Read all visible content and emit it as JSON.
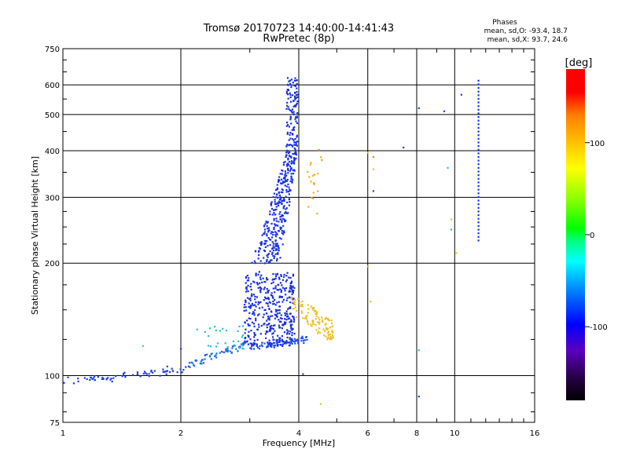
{
  "chart_data": {
    "type": "scatter",
    "title": "Tromsø 20170723 14:40:00-14:41:43",
    "subtitle": "RwPretec (8p)",
    "xlabel": "Frequency [MHz]",
    "ylabel": "Stationary phase Virtual Height [km]",
    "x_scale": "log",
    "y_scale": "log",
    "xlim": [
      1,
      16
    ],
    "ylim": [
      75,
      750
    ],
    "x_ticks": [
      1,
      2,
      4,
      6,
      8,
      10,
      16
    ],
    "x_tick_labels": [
      "1",
      "2",
      "4",
      "6",
      "8",
      "10",
      "16"
    ],
    "y_ticks": [
      75,
      100,
      200,
      300,
      400,
      500,
      600,
      750
    ],
    "y_tick_labels": [
      "75",
      "100",
      "200",
      "300",
      "400",
      "500",
      "600",
      "750"
    ],
    "grid": true,
    "phases": {
      "heading": "Phases",
      "o_line": "mean, sd,O: -93.4, 18.7",
      "x_line": "mean, sd,X:  93.7, 24.6"
    },
    "colorbar": {
      "label": "[deg]",
      "min": -180,
      "max": 180,
      "ticks": [
        100,
        0,
        -100
      ],
      "tick_labels": [
        "100",
        "0",
        "-100"
      ],
      "stops": [
        "#000000",
        "#2a0048",
        "#5a00c0",
        "#0000ff",
        "#0080ff",
        "#00ffff",
        "#00ff80",
        "#00ff00",
        "#80ff00",
        "#ffff00",
        "#ffc000",
        "#ff8000",
        "#ff0000",
        "#ff0000"
      ]
    },
    "clusters": [
      {
        "name": "low-trace",
        "color": "#1e40e6",
        "n": 70,
        "fmin": 1.0,
        "fmax": 2.1,
        "hmin": 94,
        "hmax": 106
      },
      {
        "name": "trace-rise",
        "color": "#1e6ee6",
        "n": 60,
        "fmin": 2.1,
        "fmax": 2.9,
        "hmin": 106,
        "hmax": 122
      },
      {
        "name": "o-base",
        "color": "#1e50f0",
        "n": 70,
        "fmin": 3.0,
        "fmax": 4.2,
        "hmin": 118,
        "hmax": 126
      },
      {
        "name": "o-blob",
        "color": "#1a30e0",
        "n": 420,
        "fmin": 2.9,
        "fmax": 3.9,
        "hmin": 120,
        "hmax": 190
      },
      {
        "name": "o-column",
        "color": "#1a32e6",
        "n": 330,
        "fmin": 3.2,
        "fmax": 3.85,
        "hmin": 200,
        "hmax": 400
      },
      {
        "name": "o-top",
        "color": "#1830e0",
        "n": 110,
        "fmin": 3.65,
        "fmax": 4.0,
        "hmin": 400,
        "hmax": 630
      },
      {
        "name": "cyan-near-2.5",
        "color": "#20c0e0",
        "n": 25,
        "fmin": 2.3,
        "fmax": 2.9,
        "hmin": 118,
        "hmax": 136
      },
      {
        "name": "x-blob",
        "color": "#f0c020",
        "n": 110,
        "fmin": 3.8,
        "fmax": 4.9,
        "hmin": 122,
        "hmax": 168
      },
      {
        "name": "x-high",
        "color": "#f0b020",
        "n": 20,
        "fmin": 4.2,
        "fmax": 4.6,
        "hmin": 270,
        "hmax": 390
      },
      {
        "name": "ladder-11.5",
        "color": "#1a32e6",
        "n": 45,
        "fmin": 11.4,
        "fmax": 11.6,
        "hmin": 230,
        "hmax": 630
      }
    ],
    "points": [
      {
        "f": 1.6,
        "h": 120,
        "c": "#40e060"
      },
      {
        "f": 1.03,
        "h": 99,
        "c": "#1e40e6"
      },
      {
        "f": 6.0,
        "h": 395,
        "c": "#f0c020"
      },
      {
        "f": 6.2,
        "h": 385,
        "c": "#f08020"
      },
      {
        "f": 6.2,
        "h": 357,
        "c": "#f0c020"
      },
      {
        "f": 6.2,
        "h": 312,
        "c": "#1e40e6"
      },
      {
        "f": 6.0,
        "h": 196,
        "c": "#f0c020"
      },
      {
        "f": 6.1,
        "h": 158,
        "c": "#f0c020"
      },
      {
        "f": 7.4,
        "h": 408,
        "c": "#1e40e6"
      },
      {
        "f": 8.1,
        "h": 520,
        "c": "#1e40e6"
      },
      {
        "f": 9.4,
        "h": 510,
        "c": "#1e40e6"
      },
      {
        "f": 9.6,
        "h": 360,
        "c": "#20c0e0"
      },
      {
        "f": 10.4,
        "h": 565,
        "c": "#1e40e6"
      },
      {
        "f": 9.8,
        "h": 262,
        "c": "#f0c020"
      },
      {
        "f": 9.8,
        "h": 246,
        "c": "#20c0e0"
      },
      {
        "f": 10.1,
        "h": 213,
        "c": "#f0c020"
      },
      {
        "f": 8.1,
        "h": 117,
        "c": "#20c0e0"
      },
      {
        "f": 8.1,
        "h": 88,
        "c": "#1e40e6"
      },
      {
        "f": 4.55,
        "h": 84,
        "c": "#f0c020"
      },
      {
        "f": 4.1,
        "h": 101,
        "c": "#1e40e6"
      },
      {
        "f": 4.5,
        "h": 402,
        "c": "#f08020"
      },
      {
        "f": 2.2,
        "h": 133,
        "c": "#20c0e0"
      },
      {
        "f": 2.0,
        "h": 118,
        "c": "#1e40e6"
      }
    ]
  }
}
